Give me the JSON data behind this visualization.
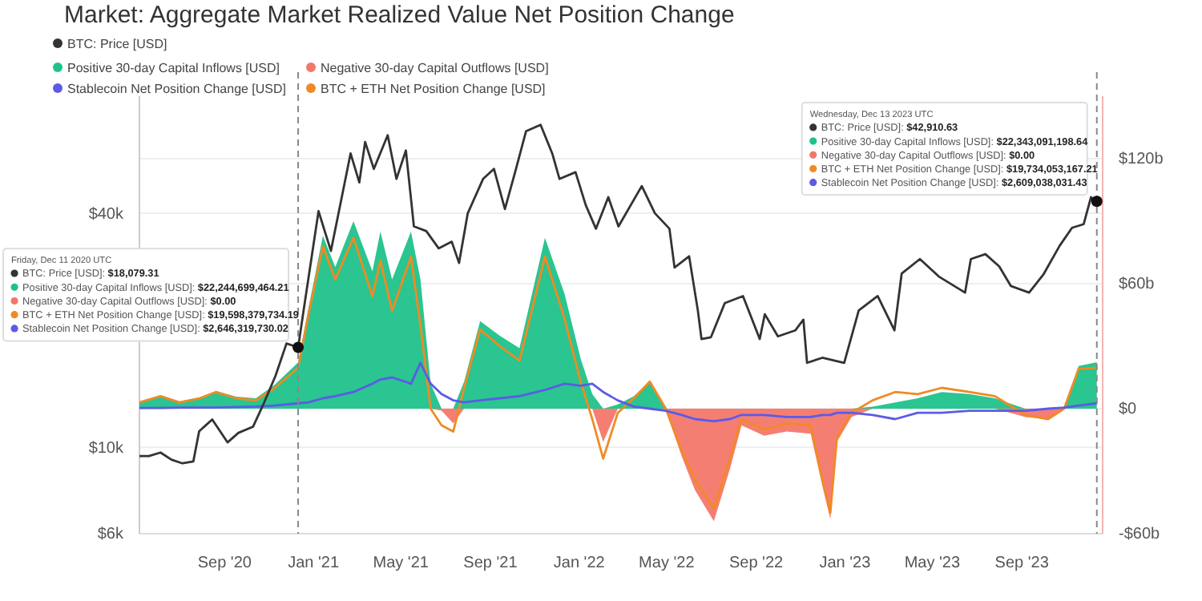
{
  "chart_data": {
    "type": "line",
    "title": "Market: Aggregate Market Realized Value Net Position Change",
    "xlim": [
      "2020-05-07",
      "2023-12-21"
    ],
    "xticks": [
      {
        "value": "2020-09-01",
        "label": "Sep '20"
      },
      {
        "value": "2021-01-01",
        "label": "Jan '21"
      },
      {
        "value": "2021-05-01",
        "label": "May '21"
      },
      {
        "value": "2021-09-01",
        "label": "Sep '21"
      },
      {
        "value": "2022-01-01",
        "label": "Jan '22"
      },
      {
        "value": "2022-05-01",
        "label": "May '22"
      },
      {
        "value": "2022-09-01",
        "label": "Sep '22"
      },
      {
        "value": "2023-01-01",
        "label": "Jan '23"
      },
      {
        "value": "2023-05-01",
        "label": "May '23"
      },
      {
        "value": "2023-09-01",
        "label": "Sep '23"
      }
    ],
    "log": true,
    "ylim": [
      6000,
      80000
    ],
    "yticks": [
      {
        "value": 6000,
        "label": "$6k"
      },
      {
        "value": 10000,
        "label": "$10k"
      },
      {
        "value": 40000,
        "label": "$40k"
      }
    ],
    "y2lim": [
      -60,
      150
    ],
    "y2ticks": [
      {
        "value": -60,
        "label": "-$60b"
      },
      {
        "value": 0,
        "label": "$0"
      },
      {
        "value": 60,
        "label": "$60b"
      },
      {
        "value": 120,
        "label": "$120b"
      }
    ],
    "grid": "y",
    "legend": "top left",
    "series": [
      {
        "name": "BTC: Price [USD]",
        "color": "#333333",
        "x": [
          "2020-05-07",
          "2020-05-20",
          "2020-06-05",
          "2020-06-20",
          "2020-07-05",
          "2020-07-20",
          "2020-07-28",
          "2020-08-15",
          "2020-09-05",
          "2020-09-20",
          "2020-10-10",
          "2020-10-25",
          "2020-11-10",
          "2020-11-25",
          "2020-12-11",
          "2020-12-20",
          "2021-01-08",
          "2021-01-25",
          "2021-02-10",
          "2021-02-21",
          "2021-03-05",
          "2021-03-13",
          "2021-03-25",
          "2021-04-13",
          "2021-04-25",
          "2021-05-08",
          "2021-05-19",
          "2021-06-05",
          "2021-06-22",
          "2021-07-10",
          "2021-07-20",
          "2021-08-01",
          "2021-08-22",
          "2021-09-06",
          "2021-09-21",
          "2021-10-05",
          "2021-10-20",
          "2021-11-09",
          "2021-11-25",
          "2021-12-05",
          "2021-12-27",
          "2022-01-10",
          "2022-01-24",
          "2022-02-10",
          "2022-02-24",
          "2022-03-28",
          "2022-04-15",
          "2022-05-05",
          "2022-05-12",
          "2022-06-01",
          "2022-06-13",
          "2022-06-18",
          "2022-07-01",
          "2022-07-20",
          "2022-08-14",
          "2022-09-06",
          "2022-09-13",
          "2022-10-01",
          "2022-10-25",
          "2022-11-05",
          "2022-11-10",
          "2022-12-01",
          "2022-12-31",
          "2023-01-20",
          "2023-02-15",
          "2023-03-10",
          "2023-03-20",
          "2023-04-14",
          "2023-05-10",
          "2023-06-15",
          "2023-06-23",
          "2023-07-13",
          "2023-08-01",
          "2023-08-17",
          "2023-09-11",
          "2023-10-01",
          "2023-10-23",
          "2023-11-09",
          "2023-11-25",
          "2023-12-05",
          "2023-12-13"
        ],
        "values": [
          9500,
          9500,
          9700,
          9300,
          9100,
          9200,
          11000,
          11800,
          10300,
          10900,
          11300,
          13000,
          15300,
          18500,
          18079.31,
          23500,
          40500,
          32000,
          45000,
          57000,
          48000,
          61000,
          52000,
          63500,
          49000,
          58000,
          37000,
          36000,
          32500,
          33800,
          29800,
          40000,
          49000,
          52000,
          41000,
          51000,
          65000,
          67500,
          57000,
          49000,
          51000,
          42000,
          36500,
          44000,
          37000,
          47000,
          40000,
          36500,
          29000,
          31000,
          22500,
          19000,
          19200,
          23500,
          24500,
          19000,
          22000,
          19300,
          20000,
          21300,
          16500,
          17000,
          16500,
          22500,
          24500,
          20000,
          28000,
          30500,
          27500,
          25000,
          30500,
          31400,
          29200,
          26000,
          25000,
          27900,
          33000,
          36700,
          37500,
          44000,
          42910.63
        ]
      },
      {
        "name": "Positive 30-day Capital Inflows [USD]",
        "type": "area",
        "axis": "y2",
        "color": "#1fc28a",
        "x": [
          "2020-05-07",
          "2020-06-05",
          "2020-07-01",
          "2020-07-29",
          "2020-08-20",
          "2020-09-17",
          "2020-10-14",
          "2020-11-09",
          "2020-12-11",
          "2020-12-25",
          "2021-01-14",
          "2021-01-31",
          "2021-02-25",
          "2021-03-23",
          "2021-04-03",
          "2021-04-19",
          "2021-05-15",
          "2021-05-28",
          "2021-06-11",
          "2021-06-26",
          "2021-07-12",
          "2021-07-27",
          "2021-08-18",
          "2021-09-14",
          "2021-10-11",
          "2021-11-15",
          "2021-12-12",
          "2022-01-03",
          "2022-01-19",
          "2022-02-03",
          "2022-02-23",
          "2022-03-17",
          "2022-04-08",
          "2022-04-30",
          "2022-05-22",
          "2022-06-09",
          "2022-07-05",
          "2022-07-27",
          "2022-08-12",
          "2022-09-12",
          "2022-10-13",
          "2022-11-15",
          "2022-12-01",
          "2022-12-12",
          "2022-12-21",
          "2023-01-10",
          "2023-02-08",
          "2023-03-11",
          "2023-04-11",
          "2023-05-14",
          "2023-06-21",
          "2023-07-26",
          "2023-09-06",
          "2023-10-07",
          "2023-10-29",
          "2023-11-18",
          "2023-12-13"
        ],
        "values": [
          3.3,
          6.3,
          3.5,
          5.5,
          8.5,
          5.8,
          5,
          11.5,
          22.2,
          48,
          83,
          68,
          90,
          66,
          85,
          62,
          85,
          62,
          12,
          0,
          0,
          13,
          42,
          35,
          29,
          82,
          55,
          24,
          7,
          0,
          2,
          6,
          13,
          0,
          0,
          0,
          0,
          0,
          0,
          0,
          0,
          0,
          0,
          0,
          0,
          0,
          1,
          3,
          5,
          8,
          7,
          5,
          0,
          0,
          0.5,
          20.5,
          22.3
        ]
      },
      {
        "name": "Negative 30-day Capital Outflows [USD]",
        "type": "area",
        "axis": "y2",
        "color": "#f4776b",
        "x": [
          "2020-05-07",
          "2020-06-05",
          "2020-07-01",
          "2020-07-29",
          "2020-08-20",
          "2020-09-17",
          "2020-10-14",
          "2020-11-09",
          "2020-12-11",
          "2020-12-25",
          "2021-01-14",
          "2021-01-31",
          "2021-02-25",
          "2021-03-23",
          "2021-04-03",
          "2021-04-19",
          "2021-05-15",
          "2021-05-28",
          "2021-06-11",
          "2021-06-26",
          "2021-07-12",
          "2021-07-27",
          "2021-08-18",
          "2021-09-14",
          "2021-10-11",
          "2021-11-15",
          "2021-12-12",
          "2022-01-03",
          "2022-01-19",
          "2022-02-03",
          "2022-02-23",
          "2022-03-17",
          "2022-04-08",
          "2022-04-30",
          "2022-05-22",
          "2022-06-09",
          "2022-07-05",
          "2022-07-27",
          "2022-08-12",
          "2022-09-12",
          "2022-10-13",
          "2022-11-15",
          "2022-12-01",
          "2022-12-12",
          "2022-12-21",
          "2023-01-10",
          "2023-02-08",
          "2023-03-11",
          "2023-04-11",
          "2023-05-14",
          "2023-06-21",
          "2023-07-26",
          "2023-09-06",
          "2023-10-07",
          "2023-10-29",
          "2023-11-18",
          "2023-12-13"
        ],
        "values": [
          0,
          0,
          0,
          0,
          0,
          0,
          0,
          0,
          0,
          0,
          0,
          0,
          0,
          0,
          0,
          0,
          0,
          0,
          0,
          -1,
          -7,
          0,
          0,
          0,
          0,
          0,
          0,
          0,
          0,
          -16,
          0,
          0,
          0,
          -1,
          -23,
          -39,
          -54,
          -29,
          -8,
          -13,
          -11,
          -12,
          -37,
          -53,
          -16,
          -4,
          0,
          0,
          0,
          0,
          0,
          0,
          -4,
          -5,
          0,
          0,
          0
        ]
      },
      {
        "name": "BTC + ETH Net Position Change [USD]",
        "axis": "y2",
        "color": "#f08a24",
        "x": [
          "2020-05-07",
          "2020-06-05",
          "2020-07-01",
          "2020-07-29",
          "2020-08-20",
          "2020-09-17",
          "2020-10-14",
          "2020-11-09",
          "2020-12-11",
          "2020-12-25",
          "2021-01-14",
          "2021-01-31",
          "2021-02-25",
          "2021-03-23",
          "2021-04-03",
          "2021-04-19",
          "2021-05-15",
          "2021-05-28",
          "2021-06-11",
          "2021-06-26",
          "2021-07-12",
          "2021-07-27",
          "2021-08-18",
          "2021-09-14",
          "2021-10-11",
          "2021-11-15",
          "2021-12-12",
          "2022-01-03",
          "2022-01-19",
          "2022-02-03",
          "2022-02-23",
          "2022-03-17",
          "2022-04-08",
          "2022-04-30",
          "2022-05-22",
          "2022-06-09",
          "2022-07-05",
          "2022-07-27",
          "2022-08-12",
          "2022-09-12",
          "2022-10-13",
          "2022-11-15",
          "2022-12-01",
          "2022-12-12",
          "2022-12-21",
          "2023-01-10",
          "2023-02-08",
          "2023-03-11",
          "2023-04-11",
          "2023-05-14",
          "2023-06-21",
          "2023-07-26",
          "2023-09-06",
          "2023-10-07",
          "2023-10-29",
          "2023-11-18",
          "2023-12-13"
        ],
        "values": [
          3,
          6,
          3,
          5,
          8,
          5,
          4,
          10,
          19.6,
          45,
          78,
          62,
          82,
          54,
          71,
          47,
          73,
          40,
          0,
          -8,
          -11,
          10,
          38,
          30,
          23,
          73,
          43,
          13,
          -5,
          -24,
          -2,
          5,
          13,
          0,
          -20,
          -34,
          -48,
          -24,
          -5,
          -10,
          -7,
          -8,
          -34,
          -50,
          -14,
          -2,
          4,
          8,
          7,
          10,
          8,
          6,
          -3,
          -5,
          0,
          19,
          19.7
        ]
      },
      {
        "name": "Stablecoin Net Position Change [USD]",
        "axis": "y2",
        "color": "#5b5be6",
        "x": [
          "2020-05-07",
          "2020-06-05",
          "2020-07-01",
          "2020-07-29",
          "2020-08-20",
          "2020-09-17",
          "2020-10-14",
          "2020-11-09",
          "2020-12-11",
          "2020-12-25",
          "2021-01-14",
          "2021-01-31",
          "2021-02-25",
          "2021-03-23",
          "2021-04-03",
          "2021-04-19",
          "2021-05-15",
          "2021-05-28",
          "2021-06-11",
          "2021-06-26",
          "2021-07-12",
          "2021-07-27",
          "2021-08-18",
          "2021-09-14",
          "2021-10-11",
          "2021-11-15",
          "2021-12-12",
          "2022-01-03",
          "2022-01-19",
          "2022-02-03",
          "2022-02-23",
          "2022-03-17",
          "2022-04-08",
          "2022-04-30",
          "2022-05-22",
          "2022-06-09",
          "2022-07-05",
          "2022-07-27",
          "2022-08-12",
          "2022-09-12",
          "2022-10-13",
          "2022-11-15",
          "2022-12-01",
          "2022-12-12",
          "2022-12-21",
          "2023-01-10",
          "2023-02-08",
          "2023-03-11",
          "2023-04-11",
          "2023-05-14",
          "2023-06-21",
          "2023-07-26",
          "2023-09-06",
          "2023-10-07",
          "2023-10-29",
          "2023-11-18",
          "2023-12-13"
        ],
        "values": [
          0.3,
          0.3,
          0.5,
          0.5,
          0.5,
          0.8,
          1,
          1.5,
          2.6,
          3,
          5,
          6,
          8,
          12,
          14,
          15,
          12,
          22,
          12,
          7,
          4,
          3,
          4,
          5,
          6,
          9,
          12,
          11,
          12,
          8,
          4,
          1,
          0,
          -1,
          -3,
          -5,
          -6,
          -5,
          -3,
          -3,
          -4,
          -4,
          -3,
          -3,
          -2,
          -2,
          -3,
          -5,
          -2,
          -2,
          -1,
          -1,
          -1,
          0,
          0.5,
          1.5,
          2.6
        ]
      }
    ],
    "ref_lines": [
      {
        "axis": "x",
        "value": "2020-12-11",
        "line_style": "dashed",
        "color": "#888888"
      },
      {
        "axis": "x",
        "value": "2023-12-13",
        "line_style": "dashed",
        "color": "#888888"
      }
    ],
    "annotations": [
      "Friday, Dec 11 2020 UTC",
      "BTC: Price [USD]: $18,079.31",
      "Positive 30-day Capital Inflows [USD]: $22,244,699,464.21",
      "Negative 30-day Capital Outflows [USD]: $0.00",
      "BTC + ETH Net Position Change [USD]: $19,598,379,734.19",
      "Stablecoin Net Position Change [USD]: $2,646,319,730.02",
      "Wednesday, Dec 13 2023 UTC",
      "BTC: Price [USD]: $42,910.63",
      "Positive 30-day Capital Inflows [USD]: $22,343,091,198.64",
      "Negative 30-day Capital Outflows [USD]: $0.00",
      "BTC + ETH Net Position Change [USD]: $19,734,053,167.21",
      "Stablecoin Net Position Change [USD]: $2,609,038,031.43"
    ]
  }
}
